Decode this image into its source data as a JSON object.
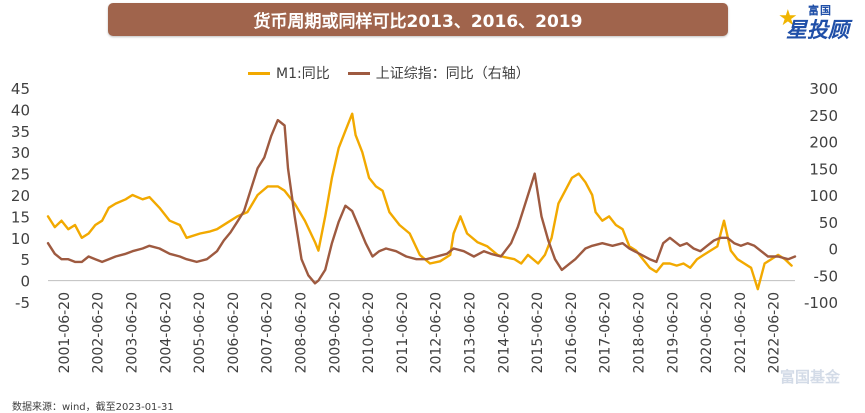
{
  "title": "货币周期或同样可比2013、2016、2019",
  "logo": {
    "top_text": "富国",
    "main_text": "星投顾"
  },
  "footnote": "数据来源：wind，截至2023-01-31",
  "watermark": "富国基金",
  "chart_data": {
    "type": "line",
    "title": "货币周期或同样可比2013、2016、2019",
    "xlabel": "",
    "ylabel": "",
    "legend_position": "top",
    "grid": false,
    "x_tick_labels": [
      "2001-06-20",
      "2002-06-20",
      "2003-06-20",
      "2004-06-20",
      "2005-06-20",
      "2006-06-20",
      "2007-06-20",
      "2008-06-20",
      "2009-06-20",
      "2010-06-20",
      "2011-06-20",
      "2012-06-20",
      "2013-06-20",
      "2014-06-20",
      "2015-06-20",
      "2016-06-20",
      "2017-06-20",
      "2018-06-20",
      "2019-06-20",
      "2020-06-20",
      "2021-06-20",
      "2022-06-20"
    ],
    "x_range": [
      2001.0,
      2023.1
    ],
    "y_left": {
      "min": -5,
      "max": 45,
      "ticks": [
        45,
        40,
        35,
        30,
        25,
        20,
        15,
        10,
        5,
        0,
        -5
      ]
    },
    "y_right": {
      "min": -100,
      "max": 300,
      "ticks": [
        300,
        250,
        200,
        150,
        100,
        50,
        0,
        -50,
        -100
      ]
    },
    "series": [
      {
        "name": "M1:同比",
        "axis": "left",
        "color": "#f2a900",
        "points": [
          [
            2001.0,
            15
          ],
          [
            2001.2,
            12.5
          ],
          [
            2001.4,
            14
          ],
          [
            2001.6,
            12
          ],
          [
            2001.8,
            13
          ],
          [
            2002.0,
            10
          ],
          [
            2002.2,
            11
          ],
          [
            2002.4,
            13
          ],
          [
            2002.6,
            14
          ],
          [
            2002.8,
            17
          ],
          [
            2003.0,
            18
          ],
          [
            2003.3,
            19
          ],
          [
            2003.5,
            20
          ],
          [
            2003.8,
            19
          ],
          [
            2004.0,
            19.5
          ],
          [
            2004.3,
            17
          ],
          [
            2004.6,
            14
          ],
          [
            2004.9,
            13
          ],
          [
            2005.1,
            10
          ],
          [
            2005.5,
            11
          ],
          [
            2005.8,
            11.5
          ],
          [
            2006.0,
            12
          ],
          [
            2006.3,
            13.5
          ],
          [
            2006.6,
            15
          ],
          [
            2006.9,
            16
          ],
          [
            2007.2,
            20
          ],
          [
            2007.5,
            22
          ],
          [
            2007.8,
            22
          ],
          [
            2008.0,
            21
          ],
          [
            2008.3,
            18
          ],
          [
            2008.6,
            14
          ],
          [
            2008.9,
            9
          ],
          [
            2009.0,
            7
          ],
          [
            2009.2,
            15
          ],
          [
            2009.4,
            24
          ],
          [
            2009.6,
            31
          ],
          [
            2009.8,
            35
          ],
          [
            2010.0,
            39
          ],
          [
            2010.1,
            34
          ],
          [
            2010.3,
            30
          ],
          [
            2010.5,
            24
          ],
          [
            2010.7,
            22
          ],
          [
            2010.9,
            21
          ],
          [
            2011.1,
            16
          ],
          [
            2011.4,
            13
          ],
          [
            2011.7,
            11
          ],
          [
            2012.0,
            6
          ],
          [
            2012.3,
            4
          ],
          [
            2012.6,
            4.5
          ],
          [
            2012.9,
            6
          ],
          [
            2013.0,
            11
          ],
          [
            2013.2,
            15
          ],
          [
            2013.4,
            11
          ],
          [
            2013.7,
            9
          ],
          [
            2014.0,
            8
          ],
          [
            2014.3,
            6
          ],
          [
            2014.5,
            5.5
          ],
          [
            2014.8,
            5
          ],
          [
            2015.0,
            4
          ],
          [
            2015.2,
            6
          ],
          [
            2015.5,
            4
          ],
          [
            2015.7,
            6
          ],
          [
            2015.9,
            10
          ],
          [
            2016.1,
            18
          ],
          [
            2016.3,
            21
          ],
          [
            2016.5,
            24
          ],
          [
            2016.7,
            25
          ],
          [
            2016.9,
            23
          ],
          [
            2017.1,
            20
          ],
          [
            2017.2,
            16
          ],
          [
            2017.4,
            14
          ],
          [
            2017.6,
            15
          ],
          [
            2017.8,
            13
          ],
          [
            2018.0,
            12
          ],
          [
            2018.2,
            8
          ],
          [
            2018.4,
            7
          ],
          [
            2018.6,
            5
          ],
          [
            2018.8,
            3
          ],
          [
            2019.0,
            2
          ],
          [
            2019.2,
            4
          ],
          [
            2019.4,
            4
          ],
          [
            2019.6,
            3.5
          ],
          [
            2019.8,
            4
          ],
          [
            2020.0,
            3
          ],
          [
            2020.2,
            5
          ],
          [
            2020.4,
            6
          ],
          [
            2020.6,
            7
          ],
          [
            2020.8,
            8
          ],
          [
            2021.0,
            14
          ],
          [
            2021.2,
            7
          ],
          [
            2021.4,
            5
          ],
          [
            2021.6,
            4
          ],
          [
            2021.8,
            3
          ],
          [
            2022.0,
            -2
          ],
          [
            2022.2,
            4
          ],
          [
            2022.4,
            5
          ],
          [
            2022.6,
            6
          ],
          [
            2022.8,
            5
          ],
          [
            2023.0,
            3.5
          ]
        ]
      },
      {
        "name": "上证综指：同比（右轴）",
        "axis": "right",
        "color": "#9e5a40",
        "points": [
          [
            2001.0,
            10
          ],
          [
            2001.2,
            -10
          ],
          [
            2001.4,
            -20
          ],
          [
            2001.6,
            -20
          ],
          [
            2001.8,
            -25
          ],
          [
            2002.0,
            -25
          ],
          [
            2002.2,
            -15
          ],
          [
            2002.4,
            -20
          ],
          [
            2002.6,
            -25
          ],
          [
            2002.8,
            -20
          ],
          [
            2003.0,
            -15
          ],
          [
            2003.3,
            -10
          ],
          [
            2003.5,
            -5
          ],
          [
            2003.8,
            0
          ],
          [
            2004.0,
            5
          ],
          [
            2004.3,
            0
          ],
          [
            2004.6,
            -10
          ],
          [
            2004.9,
            -15
          ],
          [
            2005.1,
            -20
          ],
          [
            2005.4,
            -25
          ],
          [
            2005.7,
            -20
          ],
          [
            2006.0,
            -5
          ],
          [
            2006.2,
            15
          ],
          [
            2006.4,
            30
          ],
          [
            2006.6,
            50
          ],
          [
            2006.8,
            70
          ],
          [
            2007.0,
            110
          ],
          [
            2007.2,
            150
          ],
          [
            2007.4,
            170
          ],
          [
            2007.6,
            210
          ],
          [
            2007.8,
            240
          ],
          [
            2008.0,
            230
          ],
          [
            2008.1,
            150
          ],
          [
            2008.3,
            60
          ],
          [
            2008.5,
            -20
          ],
          [
            2008.7,
            -50
          ],
          [
            2008.9,
            -65
          ],
          [
            2009.0,
            -60
          ],
          [
            2009.2,
            -40
          ],
          [
            2009.4,
            10
          ],
          [
            2009.6,
            50
          ],
          [
            2009.8,
            80
          ],
          [
            2010.0,
            70
          ],
          [
            2010.2,
            40
          ],
          [
            2010.4,
            10
          ],
          [
            2010.6,
            -15
          ],
          [
            2010.8,
            -5
          ],
          [
            2011.0,
            0
          ],
          [
            2011.3,
            -5
          ],
          [
            2011.6,
            -15
          ],
          [
            2011.9,
            -20
          ],
          [
            2012.2,
            -20
          ],
          [
            2012.5,
            -15
          ],
          [
            2012.8,
            -10
          ],
          [
            2013.0,
            0
          ],
          [
            2013.3,
            -5
          ],
          [
            2013.6,
            -15
          ],
          [
            2013.9,
            -5
          ],
          [
            2014.1,
            -10
          ],
          [
            2014.4,
            -15
          ],
          [
            2014.7,
            10
          ],
          [
            2014.9,
            40
          ],
          [
            2015.1,
            80
          ],
          [
            2015.3,
            120
          ],
          [
            2015.4,
            140
          ],
          [
            2015.6,
            60
          ],
          [
            2015.8,
            15
          ],
          [
            2016.0,
            -20
          ],
          [
            2016.2,
            -40
          ],
          [
            2016.4,
            -30
          ],
          [
            2016.6,
            -20
          ],
          [
            2016.9,
            0
          ],
          [
            2017.1,
            5
          ],
          [
            2017.4,
            10
          ],
          [
            2017.7,
            5
          ],
          [
            2018.0,
            10
          ],
          [
            2018.2,
            0
          ],
          [
            2018.5,
            -10
          ],
          [
            2018.8,
            -20
          ],
          [
            2019.0,
            -25
          ],
          [
            2019.2,
            10
          ],
          [
            2019.4,
            20
          ],
          [
            2019.7,
            5
          ],
          [
            2019.9,
            10
          ],
          [
            2020.1,
            0
          ],
          [
            2020.3,
            -5
          ],
          [
            2020.5,
            5
          ],
          [
            2020.7,
            15
          ],
          [
            2020.9,
            20
          ],
          [
            2021.1,
            20
          ],
          [
            2021.3,
            10
          ],
          [
            2021.5,
            5
          ],
          [
            2021.7,
            10
          ],
          [
            2021.9,
            5
          ],
          [
            2022.1,
            -5
          ],
          [
            2022.3,
            -15
          ],
          [
            2022.6,
            -15
          ],
          [
            2022.9,
            -20
          ],
          [
            2023.1,
            -15
          ]
        ]
      }
    ]
  }
}
